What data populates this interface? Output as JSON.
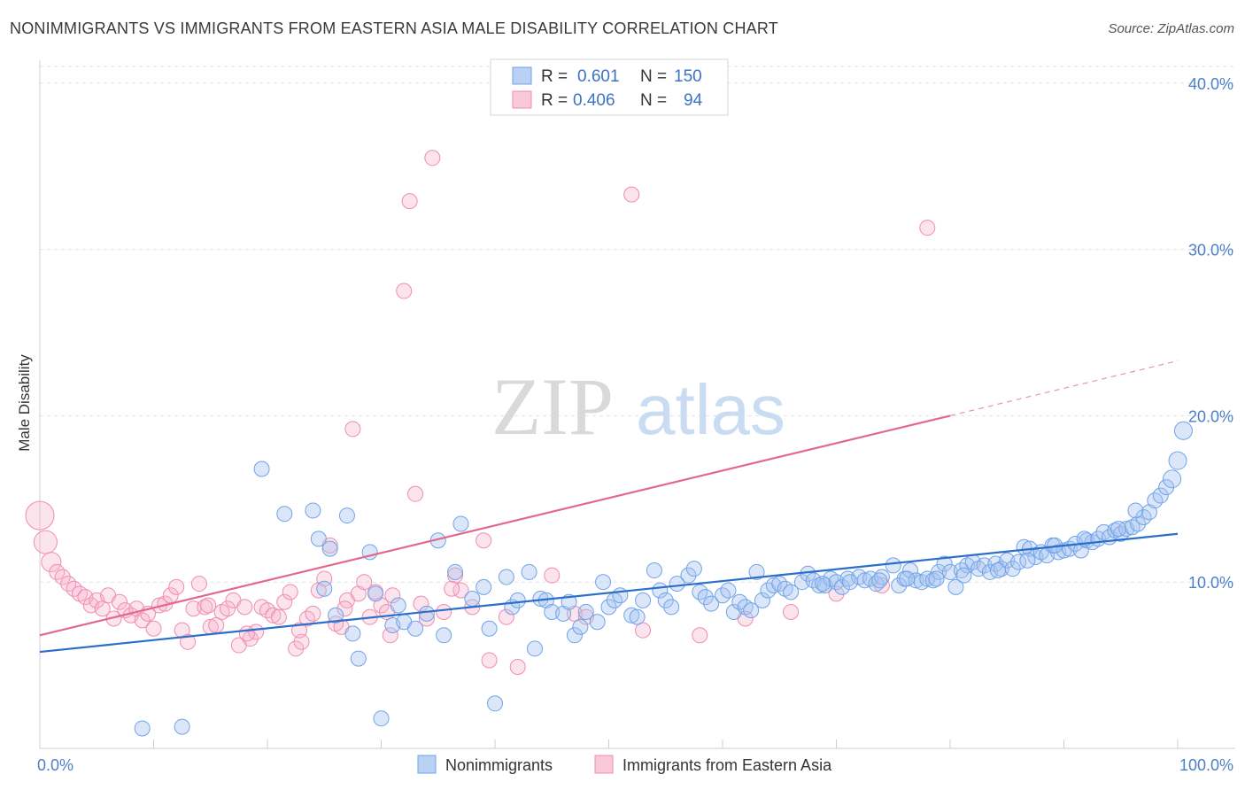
{
  "header": {
    "title": "NONIMMIGRANTS VS IMMIGRANTS FROM EASTERN ASIA MALE DISABILITY CORRELATION CHART",
    "source": "Source: ZipAtlas.com"
  },
  "watermark": {
    "zip": "ZIP",
    "atlas": "atlas"
  },
  "legend_top": {
    "rows": [
      {
        "r_label": "R = ",
        "r_value": "0.601",
        "n_label": "N = ",
        "n_value": "150"
      },
      {
        "r_label": "R = ",
        "r_value": "0.406",
        "n_label": "N = ",
        "n_value": "94"
      }
    ]
  },
  "chart_data": {
    "type": "scatter",
    "title": "NONIMMIGRANTS VS IMMIGRANTS FROM EASTERN ASIA MALE DISABILITY CORRELATION CHART",
    "ylabel": "Male Disability",
    "xlabel": "",
    "xlim": [
      0,
      100
    ],
    "ylim": [
      0,
      41
    ],
    "x_tick_labels": [
      "0.0%",
      "100.0%"
    ],
    "y_ticks": [
      10,
      20,
      30,
      40
    ],
    "y_tick_labels": [
      "10.0%",
      "20.0%",
      "30.0%",
      "40.0%"
    ],
    "grid": "horizontal dashed",
    "legend_placement": "bottom-center",
    "colors": {
      "nonimmigrants": "#6fa3e8",
      "immigrants": "#f08cb0",
      "nonimm_line": "#2b6fcb",
      "imm_line": "#e2688f"
    },
    "series": [
      {
        "name": "Nonimmigrants",
        "R": 0.601,
        "N": 150,
        "trend": {
          "x0": 0,
          "y0": 5.8,
          "x1": 100,
          "y1": 12.9
        },
        "points": [
          [
            9,
            1.2
          ],
          [
            12.5,
            1.3
          ],
          [
            19.5,
            16.8
          ],
          [
            21.5,
            14.1
          ],
          [
            24,
            14.3
          ],
          [
            24.5,
            12.6
          ],
          [
            25,
            9.6
          ],
          [
            25.5,
            12.0
          ],
          [
            26,
            8.0
          ],
          [
            27,
            14.0
          ],
          [
            27.5,
            6.9
          ],
          [
            28,
            5.4
          ],
          [
            29,
            11.8
          ],
          [
            29.5,
            9.3
          ],
          [
            30,
            1.8
          ],
          [
            31,
            7.4
          ],
          [
            31.5,
            8.6
          ],
          [
            32,
            7.6
          ],
          [
            33,
            7.2
          ],
          [
            34,
            8.1
          ],
          [
            35,
            12.5
          ],
          [
            35.5,
            6.8
          ],
          [
            36.5,
            10.6
          ],
          [
            37,
            13.5
          ],
          [
            38,
            9.0
          ],
          [
            39,
            9.7
          ],
          [
            39.5,
            7.2
          ],
          [
            40,
            2.7
          ],
          [
            41,
            10.3
          ],
          [
            41.5,
            8.5
          ],
          [
            42,
            8.9
          ],
          [
            43,
            10.6
          ],
          [
            43.5,
            6.0
          ],
          [
            44,
            9.0
          ],
          [
            44.5,
            8.9
          ],
          [
            45,
            8.2
          ],
          [
            46,
            8.1
          ],
          [
            46.5,
            8.8
          ],
          [
            47,
            6.8
          ],
          [
            47.5,
            7.3
          ],
          [
            48,
            8.2
          ],
          [
            49,
            7.6
          ],
          [
            49.5,
            10.0
          ],
          [
            50,
            8.5
          ],
          [
            50.5,
            8.9
          ],
          [
            51,
            9.2
          ],
          [
            52,
            8.0
          ],
          [
            52.5,
            7.9
          ],
          [
            53,
            8.9
          ],
          [
            54,
            10.7
          ],
          [
            54.5,
            9.5
          ],
          [
            55,
            8.9
          ],
          [
            55.5,
            8.5
          ],
          [
            56,
            9.9
          ],
          [
            57,
            10.4
          ],
          [
            57.5,
            10.8
          ],
          [
            58,
            9.4
          ],
          [
            58.5,
            9.1
          ],
          [
            59,
            8.7
          ],
          [
            60,
            9.2
          ],
          [
            60.5,
            9.5
          ],
          [
            61,
            8.2
          ],
          [
            61.5,
            8.8
          ],
          [
            62,
            8.5
          ],
          [
            62.5,
            8.3
          ],
          [
            63,
            10.6
          ],
          [
            63.5,
            8.9
          ],
          [
            64,
            9.5
          ],
          [
            64.5,
            9.8
          ],
          [
            65,
            9.9
          ],
          [
            65.5,
            9.6
          ],
          [
            66,
            9.4
          ],
          [
            67,
            10.0
          ],
          [
            67.5,
            10.5
          ],
          [
            68,
            10.1
          ],
          [
            68.5,
            9.8
          ],
          [
            69,
            9.8
          ],
          [
            69.5,
            10.2
          ],
          [
            70,
            10.0
          ],
          [
            70.5,
            9.7
          ],
          [
            71,
            10.2
          ],
          [
            72,
            10.3
          ],
          [
            72.5,
            10.1
          ],
          [
            73,
            10.2
          ],
          [
            73.5,
            9.9
          ],
          [
            74,
            10.3
          ],
          [
            75,
            11.0
          ],
          [
            75.5,
            9.8
          ],
          [
            76,
            10.2
          ],
          [
            76.5,
            10.7
          ],
          [
            77,
            10.1
          ],
          [
            77.5,
            10.0
          ],
          [
            78,
            10.2
          ],
          [
            78.5,
            10.1
          ],
          [
            79,
            10.6
          ],
          [
            79.5,
            11.1
          ],
          [
            80,
            10.6
          ],
          [
            80.5,
            9.7
          ],
          [
            81,
            10.7
          ],
          [
            81.5,
            11.0
          ],
          [
            82,
            11.2
          ],
          [
            82.5,
            10.8
          ],
          [
            83,
            11.0
          ],
          [
            83.5,
            10.6
          ],
          [
            84,
            11.1
          ],
          [
            84.5,
            10.8
          ],
          [
            85,
            11.3
          ],
          [
            85.5,
            10.8
          ],
          [
            86,
            11.2
          ],
          [
            86.5,
            12.1
          ],
          [
            87,
            12.0
          ],
          [
            87.5,
            11.5
          ],
          [
            88,
            11.8
          ],
          [
            88.5,
            11.6
          ],
          [
            89,
            12.2
          ],
          [
            89.5,
            11.8
          ],
          [
            90,
            11.9
          ],
          [
            90.5,
            12.0
          ],
          [
            91,
            12.3
          ],
          [
            91.5,
            11.9
          ],
          [
            92,
            12.5
          ],
          [
            92.5,
            12.4
          ],
          [
            93,
            12.6
          ],
          [
            93.5,
            13.0
          ],
          [
            94,
            12.7
          ],
          [
            94.5,
            13.1
          ],
          [
            95,
            12.9
          ],
          [
            95.5,
            13.2
          ],
          [
            96,
            13.3
          ],
          [
            96.5,
            13.5
          ],
          [
            97,
            13.9
          ],
          [
            97.5,
            14.2
          ],
          [
            98,
            14.9
          ],
          [
            98.5,
            15.2
          ],
          [
            99,
            15.7
          ],
          [
            99.5,
            16.2
          ],
          [
            100,
            17.3
          ],
          [
            100.5,
            19.1
          ],
          [
            96.3,
            14.3
          ],
          [
            94.8,
            13.2
          ],
          [
            91.8,
            12.6
          ],
          [
            89.2,
            12.2
          ],
          [
            86.8,
            11.3
          ],
          [
            84.2,
            10.7
          ],
          [
            81.2,
            10.4
          ],
          [
            78.8,
            10.2
          ],
          [
            76.2,
            10.2
          ],
          [
            73.8,
            10.1
          ],
          [
            71.2,
            10.0
          ],
          [
            68.8,
            9.9
          ]
        ]
      },
      {
        "name": "Immigrants from Eastern Asia",
        "R": 0.406,
        "N": 94,
        "trend": {
          "x0": 0,
          "y0": 6.8,
          "x1": 80,
          "y1": 20.0
        },
        "trend_dashed": {
          "x0": 80,
          "y0": 20.0,
          "x1": 100,
          "y1": 23.3
        },
        "points": [
          [
            0,
            14.0
          ],
          [
            0.5,
            12.4
          ],
          [
            1,
            11.2
          ],
          [
            1.5,
            10.6
          ],
          [
            2,
            10.3
          ],
          [
            2.5,
            9.9
          ],
          [
            3,
            9.6
          ],
          [
            3.5,
            9.3
          ],
          [
            4,
            9.1
          ],
          [
            4.5,
            8.6
          ],
          [
            5,
            8.9
          ],
          [
            5.5,
            8.4
          ],
          [
            6,
            9.2
          ],
          [
            6.5,
            7.8
          ],
          [
            7,
            8.8
          ],
          [
            7.5,
            8.3
          ],
          [
            8,
            8.0
          ],
          [
            8.5,
            8.4
          ],
          [
            9,
            7.7
          ],
          [
            9.5,
            8.1
          ],
          [
            10,
            7.2
          ],
          [
            10.5,
            8.6
          ],
          [
            11,
            8.7
          ],
          [
            11.5,
            9.2
          ],
          [
            12,
            9.7
          ],
          [
            12.5,
            7.1
          ],
          [
            13,
            6.4
          ],
          [
            13.5,
            8.4
          ],
          [
            14,
            9.9
          ],
          [
            14.5,
            8.5
          ],
          [
            15,
            7.3
          ],
          [
            15.5,
            7.4
          ],
          [
            16,
            8.2
          ],
          [
            16.5,
            8.4
          ],
          [
            17,
            8.9
          ],
          [
            17.5,
            6.2
          ],
          [
            18,
            8.5
          ],
          [
            18.5,
            6.6
          ],
          [
            19,
            7.0
          ],
          [
            19.5,
            8.5
          ],
          [
            20,
            8.3
          ],
          [
            20.5,
            8.0
          ],
          [
            21,
            7.9
          ],
          [
            21.5,
            8.8
          ],
          [
            22,
            9.4
          ],
          [
            22.5,
            6.0
          ],
          [
            23,
            6.4
          ],
          [
            23.5,
            7.8
          ],
          [
            24,
            8.1
          ],
          [
            24.5,
            9.5
          ],
          [
            25,
            10.2
          ],
          [
            25.5,
            12.2
          ],
          [
            26,
            7.5
          ],
          [
            26.5,
            7.3
          ],
          [
            27,
            8.9
          ],
          [
            27.5,
            19.2
          ],
          [
            28,
            9.3
          ],
          [
            28.5,
            10.0
          ],
          [
            29,
            7.9
          ],
          [
            29.5,
            9.4
          ],
          [
            30,
            8.6
          ],
          [
            30.5,
            8.2
          ],
          [
            31,
            9.2
          ],
          [
            32,
            27.5
          ],
          [
            32.5,
            32.9
          ],
          [
            33,
            15.3
          ],
          [
            33.5,
            8.7
          ],
          [
            34,
            7.8
          ],
          [
            34.5,
            35.5
          ],
          [
            35.5,
            8.2
          ],
          [
            36.5,
            10.4
          ],
          [
            37,
            9.5
          ],
          [
            38,
            8.5
          ],
          [
            39,
            12.5
          ],
          [
            39.5,
            5.3
          ],
          [
            41,
            7.9
          ],
          [
            42,
            4.9
          ],
          [
            45,
            10.4
          ],
          [
            47,
            8.1
          ],
          [
            48,
            7.9
          ],
          [
            52,
            33.3
          ],
          [
            53,
            7.1
          ],
          [
            58,
            6.8
          ],
          [
            62,
            7.8
          ],
          [
            66,
            8.2
          ],
          [
            70,
            9.3
          ],
          [
            74,
            9.8
          ],
          [
            78,
            31.3
          ],
          [
            14.8,
            8.6
          ],
          [
            18.2,
            6.9
          ],
          [
            22.8,
            7.1
          ],
          [
            26.8,
            8.4
          ],
          [
            30.8,
            6.8
          ],
          [
            36.2,
            9.6
          ]
        ]
      }
    ]
  },
  "legend_bottom": {
    "items": [
      {
        "label": "Nonimmigrants"
      },
      {
        "label": "Immigrants from Eastern Asia"
      }
    ]
  }
}
